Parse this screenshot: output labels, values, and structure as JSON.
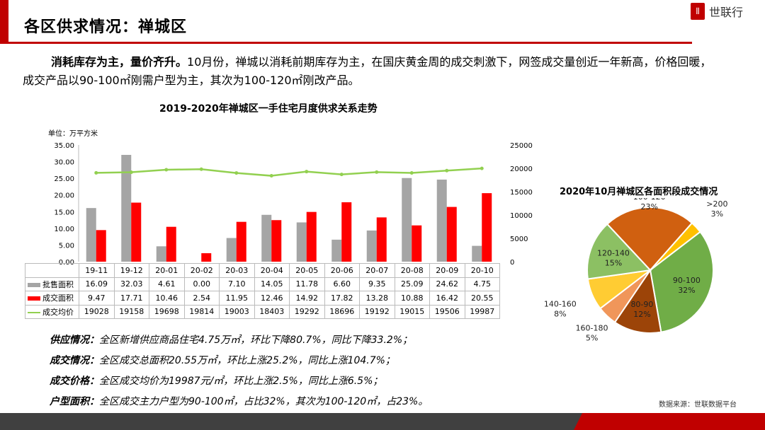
{
  "header": {
    "title": "各区供求情况：禅城区",
    "logo_text": "世联行"
  },
  "intro": {
    "bold": "消耗库存为主，量价齐升。",
    "text": "10月份，禅城以消耗前期库存为主，在国庆黄金周的成交刺激下，网签成交量创近一年新高，价格回暖，成交产品以90-100㎡刚需户型为主，其次为100-120㎡刚改产品。"
  },
  "chart_data": [
    {
      "type": "bar",
      "title": "2019-2020年禅城区一手住宅月度供求关系走势",
      "unit_label": "单位：万平方米",
      "categories": [
        "19-11",
        "19-12",
        "20-01",
        "20-02",
        "20-03",
        "20-04",
        "20-05",
        "20-06",
        "20-07",
        "20-08",
        "20-09",
        "20-10"
      ],
      "left_ylim": [
        0,
        35
      ],
      "left_ticks": [
        "35.00",
        "30.00",
        "25.00",
        "20.00",
        "15.00",
        "10.00",
        "5.00",
        "0.00"
      ],
      "right_ylim": [
        0,
        25000
      ],
      "right_ticks": [
        "25000",
        "20000",
        "15000",
        "10000",
        "5000",
        "0"
      ],
      "series": [
        {
          "name": "批售面积",
          "type": "bar",
          "axis": "left",
          "color": "#a5a5a5",
          "values": [
            16.09,
            32.03,
            4.61,
            0.0,
            7.1,
            14.05,
            11.78,
            6.6,
            9.35,
            25.09,
            24.62,
            4.75
          ],
          "labels": [
            "16.09",
            "32.03",
            "4.61",
            "0.00",
            "7.10",
            "14.05",
            "11.78",
            "6.60",
            "9.35",
            "25.09",
            "24.62",
            "4.75"
          ]
        },
        {
          "name": "成交面积",
          "type": "bar",
          "axis": "left",
          "color": "#ff0000",
          "values": [
            9.47,
            17.71,
            10.46,
            2.54,
            11.95,
            12.46,
            14.92,
            17.82,
            13.28,
            10.88,
            16.42,
            20.55
          ],
          "labels": [
            "9.47",
            "17.71",
            "10.46",
            "2.54",
            "11.95",
            "12.46",
            "14.92",
            "17.82",
            "13.28",
            "10.88",
            "16.42",
            "20.55"
          ]
        },
        {
          "name": "成交均价",
          "type": "line",
          "axis": "right",
          "color": "#92d050",
          "values": [
            19028,
            19158,
            19698,
            19814,
            19003,
            18403,
            19292,
            18696,
            19192,
            19015,
            19506,
            19987
          ]
        }
      ]
    },
    {
      "type": "pie",
      "title": "2020年10月禅城区各面积段成交情况",
      "slices": [
        {
          "label": "100-120",
          "pct": "23%",
          "value": 23,
          "color": "#d06010"
        },
        {
          "label": ">200",
          "pct": "3%",
          "value": 3,
          "color": "#ffc000"
        },
        {
          "label": "90-100",
          "pct": "32%",
          "value": 32,
          "color": "#70ad47"
        },
        {
          "label": "80-90",
          "pct": "12%",
          "value": 12,
          "color": "#9c4408"
        },
        {
          "label": "160-180",
          "pct": "5%",
          "value": 5,
          "color": "#f0965a"
        },
        {
          "label": "140-160",
          "pct": "8%",
          "value": 8,
          "color": "#ffcc33"
        },
        {
          "label": "120-140",
          "pct": "15%",
          "value": 15,
          "color": "#8cc063"
        }
      ]
    }
  ],
  "bullets": [
    {
      "label": "供应情况：",
      "text": "全区新增供应商品住宅4.75万㎡，环比下降80.7%，同比下降33.2%；"
    },
    {
      "label": "成交情况：",
      "text": "全区成交总面积20.55万㎡，环比上涨25.2%，同比上涨104.7%；"
    },
    {
      "label": "成交价格：",
      "text": "全区成交均价为19987元/㎡，环比上涨2.5%，同比上涨6.5%；"
    },
    {
      "label": "户型面积：",
      "text": "全区成交主力户型为90-100㎡，占比32%，其次为100-120㎡，占23%。"
    }
  ],
  "source": "数据来源：世联数据平台"
}
